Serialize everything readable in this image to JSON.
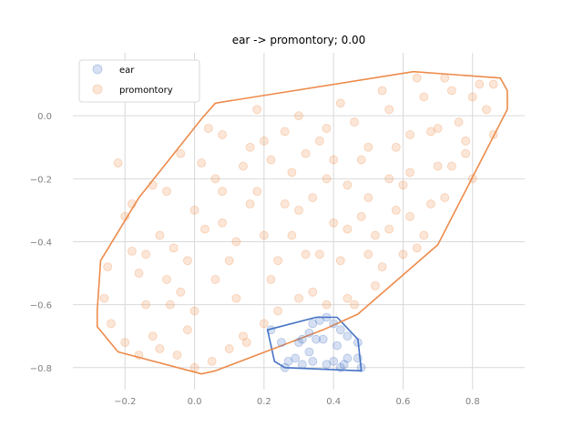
{
  "chart_data": {
    "type": "scatter",
    "title": "ear -> promontory; 0.00",
    "xlabel": "",
    "ylabel": "",
    "xlim": [
      -0.35,
      0.95
    ],
    "ylim": [
      -0.87,
      0.2
    ],
    "x_ticks": [
      -0.2,
      0.0,
      0.2,
      0.4,
      0.6,
      0.8
    ],
    "y_ticks": [
      0.0,
      -0.2,
      -0.4,
      -0.6,
      -0.8
    ],
    "x_tick_labels": [
      "−0.2",
      "0.0",
      "0.2",
      "0.4",
      "0.6",
      "0.8"
    ],
    "y_tick_labels": [
      "0.0",
      "−0.2",
      "−0.4",
      "−0.6",
      "−0.8"
    ],
    "grid": true,
    "legend_position": "top-left",
    "series": [
      {
        "name": "ear",
        "color": "#4472c4",
        "points": [
          [
            0.22,
            -0.68
          ],
          [
            0.25,
            -0.72
          ],
          [
            0.27,
            -0.78
          ],
          [
            0.3,
            -0.72
          ],
          [
            0.31,
            -0.71
          ],
          [
            0.33,
            -0.69
          ],
          [
            0.34,
            -0.66
          ],
          [
            0.35,
            -0.71
          ],
          [
            0.37,
            -0.71
          ],
          [
            0.38,
            -0.64
          ],
          [
            0.36,
            -0.65
          ],
          [
            0.4,
            -0.66
          ],
          [
            0.42,
            -0.68
          ],
          [
            0.44,
            -0.7
          ],
          [
            0.47,
            -0.72
          ],
          [
            0.41,
            -0.73
          ],
          [
            0.34,
            -0.78
          ],
          [
            0.38,
            -0.79
          ],
          [
            0.4,
            -0.78
          ],
          [
            0.42,
            -0.8
          ],
          [
            0.44,
            -0.77
          ],
          [
            0.47,
            -0.77
          ],
          [
            0.48,
            -0.8
          ],
          [
            0.26,
            -0.8
          ],
          [
            0.29,
            -0.77
          ],
          [
            0.31,
            -0.79
          ],
          [
            0.33,
            -0.75
          ],
          [
            0.43,
            -0.79
          ]
        ],
        "hull": [
          [
            0.21,
            -0.68
          ],
          [
            0.35,
            -0.64
          ],
          [
            0.41,
            -0.64
          ],
          [
            0.47,
            -0.71
          ],
          [
            0.48,
            -0.81
          ],
          [
            0.26,
            -0.8
          ],
          [
            0.23,
            -0.78
          ]
        ]
      },
      {
        "name": "promontory",
        "color": "#ed8b4b",
        "points": [
          [
            -0.22,
            -0.15
          ],
          [
            -0.2,
            -0.32
          ],
          [
            -0.18,
            -0.43
          ],
          [
            -0.16,
            -0.5
          ],
          [
            -0.14,
            -0.6
          ],
          [
            -0.12,
            -0.7
          ],
          [
            -0.1,
            -0.38
          ],
          [
            -0.08,
            -0.24
          ],
          [
            -0.06,
            -0.42
          ],
          [
            -0.04,
            -0.56
          ],
          [
            -0.02,
            -0.68
          ],
          [
            0.0,
            -0.3
          ],
          [
            0.02,
            -0.15
          ],
          [
            0.04,
            -0.04
          ],
          [
            0.06,
            -0.2
          ],
          [
            0.08,
            -0.34
          ],
          [
            0.1,
            -0.46
          ],
          [
            0.12,
            -0.58
          ],
          [
            0.14,
            -0.7
          ],
          [
            0.16,
            -0.1
          ],
          [
            0.18,
            -0.24
          ],
          [
            0.2,
            -0.38
          ],
          [
            0.22,
            -0.52
          ],
          [
            0.24,
            -0.62
          ],
          [
            0.26,
            -0.05
          ],
          [
            0.28,
            -0.18
          ],
          [
            0.3,
            -0.3
          ],
          [
            0.32,
            -0.44
          ],
          [
            0.34,
            -0.56
          ],
          [
            0.36,
            -0.08
          ],
          [
            0.38,
            -0.2
          ],
          [
            0.4,
            -0.34
          ],
          [
            0.42,
            -0.46
          ],
          [
            0.44,
            -0.58
          ],
          [
            0.46,
            -0.02
          ],
          [
            0.48,
            -0.14
          ],
          [
            0.5,
            -0.26
          ],
          [
            0.52,
            -0.38
          ],
          [
            0.54,
            -0.48
          ],
          [
            0.56,
            0.02
          ],
          [
            0.58,
            -0.1
          ],
          [
            0.6,
            -0.22
          ],
          [
            0.62,
            -0.32
          ],
          [
            0.64,
            -0.42
          ],
          [
            0.66,
            0.06
          ],
          [
            0.68,
            -0.05
          ],
          [
            0.7,
            -0.16
          ],
          [
            0.72,
            -0.26
          ],
          [
            0.74,
            0.08
          ],
          [
            0.76,
            -0.02
          ],
          [
            0.78,
            -0.12
          ],
          [
            0.8,
            -0.2
          ],
          [
            0.82,
            0.1
          ],
          [
            0.84,
            0.02
          ],
          [
            0.86,
            -0.06
          ],
          [
            -0.25,
            -0.48
          ],
          [
            -0.26,
            -0.58
          ],
          [
            -0.24,
            -0.66
          ],
          [
            -0.2,
            -0.72
          ],
          [
            -0.16,
            -0.76
          ],
          [
            -0.1,
            -0.74
          ],
          [
            -0.05,
            -0.76
          ],
          [
            0.0,
            -0.8
          ],
          [
            0.05,
            -0.78
          ],
          [
            0.1,
            -0.74
          ],
          [
            0.15,
            -0.72
          ],
          [
            0.2,
            -0.66
          ],
          [
            -0.12,
            -0.22
          ],
          [
            -0.04,
            -0.12
          ],
          [
            0.08,
            -0.06
          ],
          [
            0.18,
            0.02
          ],
          [
            0.3,
            0.0
          ],
          [
            0.42,
            0.04
          ],
          [
            0.54,
            0.08
          ],
          [
            0.64,
            0.12
          ],
          [
            0.72,
            0.12
          ],
          [
            0.8,
            0.06
          ],
          [
            0.86,
            0.1
          ],
          [
            0.6,
            -0.44
          ],
          [
            0.52,
            -0.54
          ],
          [
            0.46,
            -0.6
          ],
          [
            0.38,
            -0.6
          ],
          [
            -0.18,
            -0.28
          ],
          [
            -0.14,
            -0.44
          ],
          [
            -0.08,
            -0.52
          ],
          [
            0.0,
            -0.62
          ],
          [
            0.06,
            -0.52
          ],
          [
            0.12,
            -0.4
          ],
          [
            0.16,
            -0.28
          ],
          [
            0.22,
            -0.14
          ],
          [
            0.28,
            -0.38
          ],
          [
            0.34,
            -0.26
          ],
          [
            0.4,
            -0.14
          ],
          [
            0.48,
            -0.32
          ],
          [
            0.56,
            -0.2
          ],
          [
            0.62,
            -0.06
          ],
          [
            0.68,
            -0.28
          ],
          [
            0.74,
            -0.16
          ],
          [
            0.3,
            -0.58
          ],
          [
            0.24,
            -0.46
          ],
          [
            0.36,
            -0.44
          ],
          [
            0.44,
            -0.36
          ],
          [
            0.5,
            -0.44
          ],
          [
            0.58,
            -0.3
          ],
          [
            -0.07,
            -0.6
          ],
          [
            -0.02,
            -0.46
          ],
          [
            0.03,
            -0.36
          ],
          [
            0.08,
            -0.24
          ],
          [
            0.14,
            -0.16
          ],
          [
            0.2,
            -0.08
          ],
          [
            0.26,
            -0.28
          ],
          [
            0.32,
            -0.12
          ],
          [
            0.38,
            -0.04
          ],
          [
            0.44,
            -0.22
          ],
          [
            0.5,
            -0.1
          ],
          [
            0.56,
            -0.36
          ],
          [
            0.62,
            -0.18
          ],
          [
            0.7,
            -0.04
          ],
          [
            0.78,
            -0.08
          ],
          [
            0.66,
            -0.38
          ]
        ],
        "hull": [
          [
            0.63,
            0.14
          ],
          [
            0.88,
            0.12
          ],
          [
            0.9,
            0.08
          ],
          [
            0.9,
            0.02
          ],
          [
            0.7,
            -0.41
          ],
          [
            0.47,
            -0.63
          ],
          [
            0.37,
            -0.68
          ],
          [
            0.06,
            -0.81
          ],
          [
            0.02,
            -0.82
          ],
          [
            -0.22,
            -0.75
          ],
          [
            -0.28,
            -0.67
          ],
          [
            -0.28,
            -0.62
          ],
          [
            -0.27,
            -0.46
          ],
          [
            -0.16,
            -0.26
          ],
          [
            0.02,
            -0.01
          ],
          [
            0.06,
            0.04
          ]
        ]
      }
    ]
  }
}
